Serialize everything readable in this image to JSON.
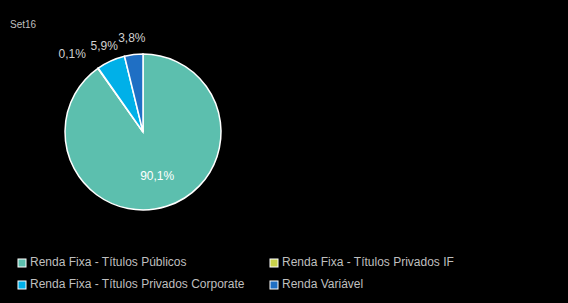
{
  "chart_data": {
    "type": "pie",
    "title": "Set16",
    "categories": [
      "Renda Fixa - Títulos Públicos",
      "Renda Fixa - Títulos Privados IF",
      "Renda Fixa - Títulos Privados Corporate",
      "Renda Variável"
    ],
    "values": [
      90.1,
      0.1,
      5.9,
      3.8
    ],
    "value_labels": [
      "90,1%",
      "0,1%",
      "5,9%",
      "3,8%"
    ],
    "colors": [
      "#5cbfae",
      "#c9d24b",
      "#00b0e8",
      "#1f6fc4"
    ],
    "data_labels": true,
    "legend": "bottom"
  }
}
